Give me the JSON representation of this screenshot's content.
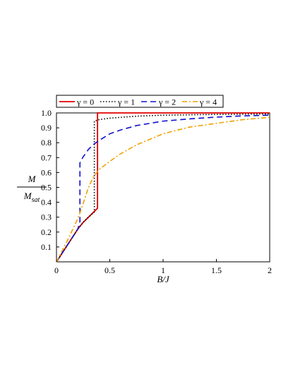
{
  "chart_data": {
    "type": "line",
    "xlabel": "B/J",
    "ylabel": {
      "numerator": "M",
      "denominator": "M",
      "denominator_sub": "sat"
    },
    "xlim": [
      0,
      2
    ],
    "ylim": [
      0,
      1
    ],
    "xticks": [
      0,
      0.5,
      1,
      1.5,
      2
    ],
    "xtick_labels": [
      "0",
      "0.5",
      "1",
      "1.5",
      "2"
    ],
    "yticks": [
      0.1,
      0.2,
      0.3,
      0.4,
      0.5,
      0.6,
      0.7,
      0.8,
      0.9,
      1.0
    ],
    "ytick_labels": [
      "0.1",
      "0.2",
      "0.3",
      "0.4",
      "0.5",
      "0.6",
      "0.7",
      "0.8",
      "0.9",
      "1.0"
    ],
    "grid": false,
    "legend_position": "top",
    "series": [
      {
        "name": "γ = 0",
        "color": "#e00000",
        "dash": "solid",
        "points": [
          [
            0,
            0
          ],
          [
            0.05,
            0.055
          ],
          [
            0.1,
            0.11
          ],
          [
            0.15,
            0.165
          ],
          [
            0.2,
            0.22
          ],
          [
            0.25,
            0.265
          ],
          [
            0.3,
            0.3
          ],
          [
            0.35,
            0.335
          ],
          [
            0.385,
            0.36
          ],
          [
            0.385,
            1.0
          ],
          [
            0.5,
            1.0
          ],
          [
            1.0,
            1.0
          ],
          [
            1.5,
            1.0
          ],
          [
            2.0,
            1.0
          ]
        ]
      },
      {
        "name": "γ = 1",
        "color": "#000000",
        "dash": "dotted",
        "points": [
          [
            0,
            0
          ],
          [
            0.05,
            0.055
          ],
          [
            0.1,
            0.11
          ],
          [
            0.15,
            0.165
          ],
          [
            0.2,
            0.22
          ],
          [
            0.25,
            0.265
          ],
          [
            0.3,
            0.3
          ],
          [
            0.355,
            0.335
          ],
          [
            0.355,
            0.945
          ],
          [
            0.4,
            0.955
          ],
          [
            0.5,
            0.965
          ],
          [
            0.75,
            0.978
          ],
          [
            1.0,
            0.985
          ],
          [
            1.5,
            0.99
          ],
          [
            2.0,
            0.993
          ]
        ]
      },
      {
        "name": "γ = 2",
        "color": "#1010d0",
        "dash": "dashed",
        "points": [
          [
            0,
            0
          ],
          [
            0.05,
            0.055
          ],
          [
            0.1,
            0.11
          ],
          [
            0.15,
            0.165
          ],
          [
            0.2,
            0.22
          ],
          [
            0.22,
            0.27
          ],
          [
            0.22,
            0.665
          ],
          [
            0.25,
            0.705
          ],
          [
            0.3,
            0.755
          ],
          [
            0.35,
            0.79
          ],
          [
            0.4,
            0.815
          ],
          [
            0.5,
            0.86
          ],
          [
            0.6,
            0.885
          ],
          [
            0.75,
            0.915
          ],
          [
            1.0,
            0.945
          ],
          [
            1.25,
            0.96
          ],
          [
            1.5,
            0.972
          ],
          [
            1.75,
            0.98
          ],
          [
            2.0,
            0.985
          ]
        ]
      },
      {
        "name": "γ = 4",
        "color": "#f0a000",
        "dash": "dashdot",
        "points": [
          [
            0,
            0
          ],
          [
            0.05,
            0.07
          ],
          [
            0.1,
            0.14
          ],
          [
            0.15,
            0.215
          ],
          [
            0.2,
            0.29
          ],
          [
            0.25,
            0.39
          ],
          [
            0.3,
            0.5
          ],
          [
            0.35,
            0.575
          ],
          [
            0.4,
            0.62
          ],
          [
            0.5,
            0.675
          ],
          [
            0.6,
            0.725
          ],
          [
            0.75,
            0.785
          ],
          [
            1.0,
            0.86
          ],
          [
            1.25,
            0.905
          ],
          [
            1.5,
            0.93
          ],
          [
            1.75,
            0.955
          ],
          [
            2.0,
            0.97
          ]
        ]
      }
    ]
  }
}
